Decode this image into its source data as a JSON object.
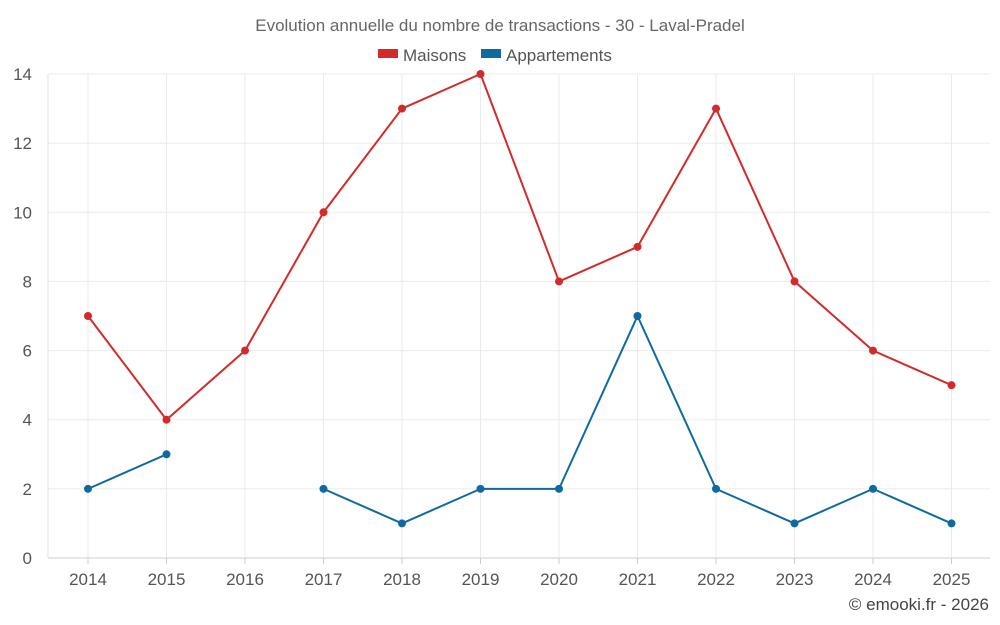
{
  "chart_data": {
    "type": "line",
    "title": "Evolution annuelle du nombre de transactions - 30 - Laval-Pradel",
    "categories": [
      "2014",
      "2015",
      "2016",
      "2017",
      "2018",
      "2019",
      "2020",
      "2021",
      "2022",
      "2023",
      "2024",
      "2025"
    ],
    "series": [
      {
        "name": "Maisons",
        "color": "#d32a2a",
        "values": [
          7,
          4,
          6,
          10,
          13,
          14,
          8,
          9,
          13,
          8,
          6,
          5
        ]
      },
      {
        "name": "Appartements",
        "color": "#0f6aa0",
        "values": [
          2,
          3,
          null,
          2,
          1,
          2,
          2,
          7,
          2,
          1,
          2,
          1
        ]
      }
    ],
    "ylim": [
      0,
      14
    ],
    "yticks": [
      0,
      2,
      4,
      6,
      8,
      10,
      12,
      14
    ],
    "xlabel": "",
    "ylabel": "",
    "grid": true,
    "legend_position": "top-center",
    "credit": "© emooki.fr - 2026"
  }
}
